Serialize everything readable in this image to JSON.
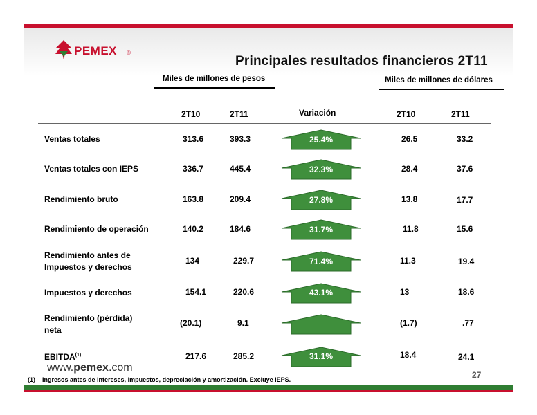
{
  "title": "Principales resultados financieros 2T11",
  "logo": {
    "name": "PEMEX",
    "reg": "®"
  },
  "groups": {
    "pesos": "Miles de millones de pesos",
    "dolares": "Miles de millones de dólares"
  },
  "columns": {
    "p2t10": "2T10",
    "p2t11": "2T11",
    "variacion": "Variación",
    "d2t10": "2T10",
    "d2t11": "2T11"
  },
  "rows": [
    {
      "label1": "Ventas totales",
      "label2": "",
      "p2t10": "313.6",
      "p2t11": "393.3",
      "var": "25.4%",
      "d2t10": "26.5",
      "d2t11": "33.2"
    },
    {
      "label1": "Ventas totales con IEPS",
      "label2": "",
      "p2t10": "336.7",
      "p2t11": "445.4",
      "var": "32.3%",
      "d2t10": "28.4",
      "d2t11": "37.6"
    },
    {
      "label1": "Rendimiento bruto",
      "label2": "",
      "p2t10": "163.8",
      "p2t11": "209.4",
      "var": "27.8%",
      "d2t10": "13.8",
      "d2t11": "17.7"
    },
    {
      "label1": "Rendimiento de operación",
      "label2": "",
      "p2t10": "140.2",
      "p2t11": "184.6",
      "var": "31.7%",
      "d2t10": "11.8",
      "d2t11": "15.6"
    },
    {
      "label1": "Rendimiento antes de",
      "label2": "Impuestos y derechos",
      "p2t10": "134",
      "p2t11": "229.7",
      "var": "71.4%",
      "d2t10": "11.3",
      "d2t11": "19.4"
    },
    {
      "label1": "Impuestos y derechos",
      "label2": "",
      "p2t10": "154.1",
      "p2t11": "220.6",
      "var": "43.1%",
      "d2t10": "13",
      "d2t11": "18.6"
    },
    {
      "label1": "Rendimiento (pérdida)",
      "label2": "neta",
      "p2t10": "(20.1)",
      "p2t11": "9.1",
      "var": "",
      "d2t10": "(1.7)",
      "d2t11": ".77"
    },
    {
      "label1": "EBITDA",
      "label2": "",
      "sup": "(1)",
      "p2t10": "217.6",
      "p2t11": "285.2",
      "var": "31.1%",
      "d2t10": "18.4",
      "d2t11": "24.1"
    }
  ],
  "website": {
    "pre": "www.",
    "brand": "pemex",
    "post": ".com"
  },
  "page_number": "27",
  "footnote": {
    "marker": "(1)",
    "text": "Ingresos antes de intereses, impuestos, depreciación y amortización. Excluye IEPS."
  }
}
